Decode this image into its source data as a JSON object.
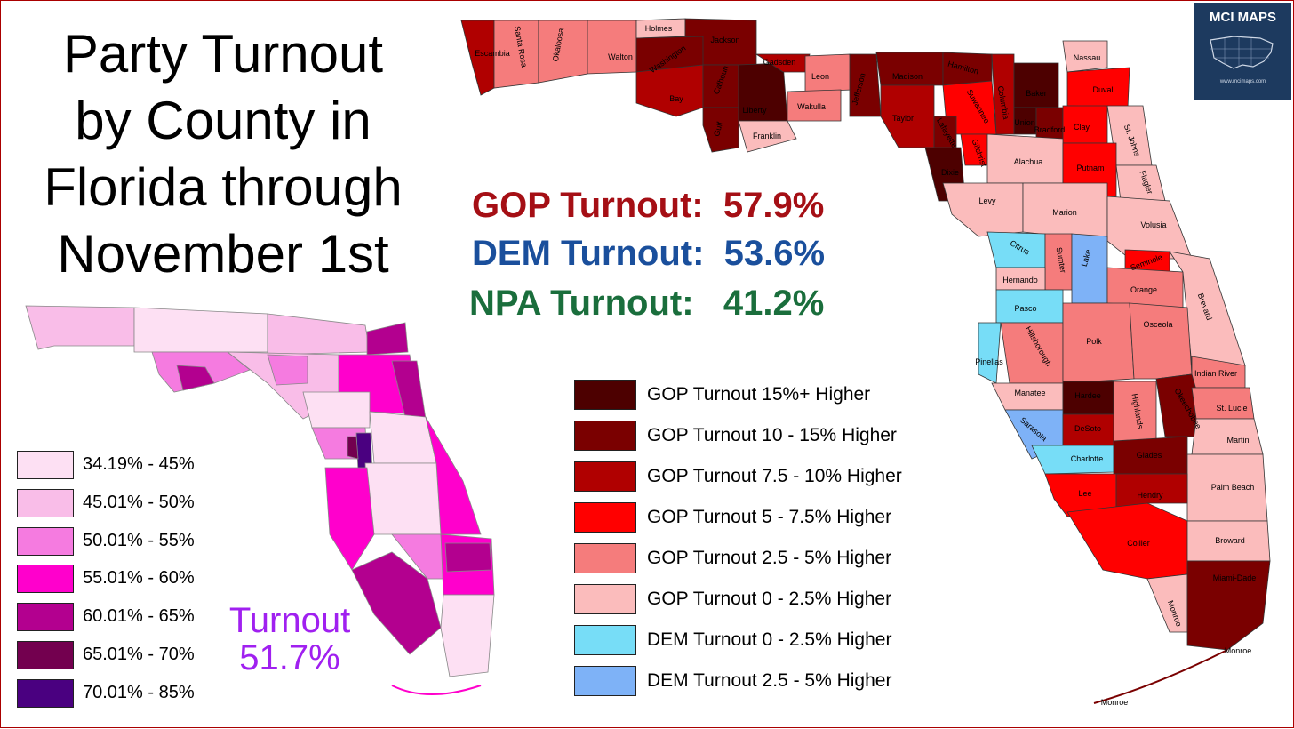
{
  "title": {
    "lines": [
      "Party Turnout",
      "by County in",
      "Florida through",
      "November 1st"
    ]
  },
  "party_turnout": {
    "gop": "GOP Turnout:  57.9%",
    "dem": "DEM Turnout:  53.6%",
    "npa": "NPA Turnout:   41.2%"
  },
  "overall_turnout": {
    "label": "Turnout",
    "value": "51.7%"
  },
  "logo": {
    "text": "MCI MAPS",
    "url": "www.mcimaps.com"
  },
  "turnout_legend": [
    {
      "label": "34.19% - 45%",
      "color": "#fde0f3"
    },
    {
      "label": "45.01% - 50%",
      "color": "#f9bde8"
    },
    {
      "label": "50.01% - 55%",
      "color": "#f57be0"
    },
    {
      "label": "55.01% - 60%",
      "color": "#ff00cc"
    },
    {
      "label": "60.01% - 65%",
      "color": "#b3008f"
    },
    {
      "label": "65.01% - 70%",
      "color": "#73004f"
    },
    {
      "label": "70.01% - 85%",
      "color": "#4a0080"
    }
  ],
  "party_legend": [
    {
      "label": "GOP Turnout 15%+ Higher",
      "color": "#4d0000"
    },
    {
      "label": "GOP Turnout 10 - 15% Higher",
      "color": "#7a0000"
    },
    {
      "label": "GOP Turnout 7.5 - 10% Higher",
      "color": "#b00000"
    },
    {
      "label": "GOP Turnout 5 - 7.5% Higher",
      "color": "#ff0000"
    },
    {
      "label": "GOP Turnout 2.5 - 5% Higher",
      "color": "#f57c7c"
    },
    {
      "label": "GOP Turnout 0 - 2.5% Higher",
      "color": "#fbbcbc"
    },
    {
      "label": "DEM Turnout 0 - 2.5% Higher",
      "color": "#77ddf7"
    },
    {
      "label": "DEM Turnout 2.5 - 5% Higher",
      "color": "#7eb2f7"
    }
  ],
  "counties": {
    "escambia": "Escambia",
    "santa_rosa": "Santa Rosa",
    "okaloosa": "Okaloosa",
    "walton": "Walton",
    "holmes": "Holmes",
    "jackson": "Jackson",
    "washington": "Washington",
    "bay": "Bay",
    "calhoun": "Calhoun",
    "gadsden": "Gadsden",
    "liberty": "Liberty",
    "gulf": "Gulf",
    "leon": "Leon",
    "wakulla": "Wakulla",
    "franklin": "Franklin",
    "jefferson": "Jefferson",
    "madison": "Madison",
    "hamilton": "Hamilton",
    "taylor": "Taylor",
    "suwannee": "Suwannee",
    "columbia": "Columbia",
    "baker": "Baker",
    "nassau": "Nassau",
    "duval": "Duval",
    "union": "Union",
    "bradford": "Bradford",
    "clay": "Clay",
    "st_johns": "St. Johns",
    "lafayette": "Lafayette",
    "gilchrist": "Gilchrist",
    "dixie": "Dixie",
    "alachua": "Alachua",
    "putnam": "Putnam",
    "flagler": "Flagler",
    "levy": "Levy",
    "marion": "Marion",
    "volusia": "Volusia",
    "citrus": "Citrus",
    "sumter": "Sumter",
    "lake": "Lake",
    "seminole": "Seminole",
    "hernando": "Hernando",
    "orange": "Orange",
    "brevard": "Brevard",
    "pasco": "Pasco",
    "pinellas": "Pinellas",
    "hillsborough": "Hillsborough",
    "polk": "Polk",
    "osceola": "Osceola",
    "indian_river": "Indian River",
    "manatee": "Manatee",
    "hardee": "Hardee",
    "highlands": "Highlands",
    "okeechobee": "Okeechobee",
    "st_lucie": "St. Lucie",
    "sarasota": "Sarasota",
    "desoto": "DeSoto",
    "martin": "Martin",
    "charlotte": "Charlotte",
    "glades": "Glades",
    "palm_beach": "Palm Beach",
    "lee": "Lee",
    "hendry": "Hendry",
    "collier": "Collier",
    "broward": "Broward",
    "miami_dade": "Miami-Dade",
    "monroe": "Monroe"
  }
}
